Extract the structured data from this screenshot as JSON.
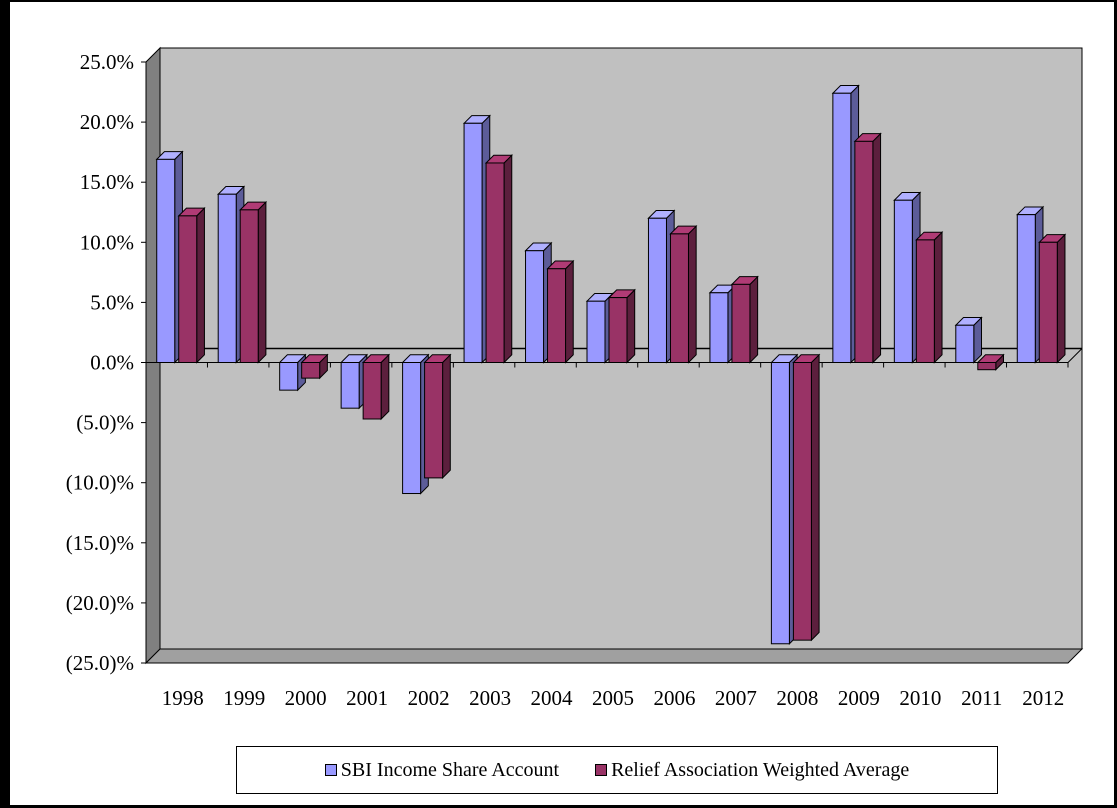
{
  "chart_data": {
    "type": "bar",
    "title": "",
    "xlabel": "",
    "ylabel": "",
    "categories": [
      "1998",
      "1999",
      "2000",
      "2001",
      "2002",
      "2003",
      "2004",
      "2005",
      "2006",
      "2007",
      "2008",
      "2009",
      "2010",
      "2011",
      "2012"
    ],
    "series": [
      {
        "name": "SBI Income Share Account",
        "color": "#9999ff",
        "values": [
          16.9,
          14.0,
          -2.3,
          -3.8,
          -10.9,
          19.9,
          9.3,
          5.1,
          12.0,
          5.8,
          -23.4,
          22.4,
          13.5,
          3.1,
          12.3
        ]
      },
      {
        "name": "Relief Association Weighted Average",
        "color": "#993366",
        "values": [
          12.2,
          12.7,
          -1.3,
          -4.7,
          -9.6,
          16.6,
          7.8,
          5.4,
          10.7,
          6.5,
          -23.1,
          18.4,
          10.2,
          -0.6,
          10.0
        ]
      }
    ],
    "ylim": [
      -25,
      25
    ],
    "yticks": [
      25,
      20,
      15,
      10,
      5,
      0,
      -5,
      -10,
      -15,
      -20,
      -25
    ],
    "ytick_labels": [
      "25.0%",
      "20.0%",
      "15.0%",
      "10.0%",
      "5.0%",
      "0.0%",
      "(5.0)%",
      "(10.0)%",
      "(15.0)%",
      "(20.0)%",
      "(25.0)%"
    ],
    "grid": false,
    "style": "3d-clustered-column",
    "wall_color": "#c0c0c0",
    "legend_position": "bottom"
  }
}
